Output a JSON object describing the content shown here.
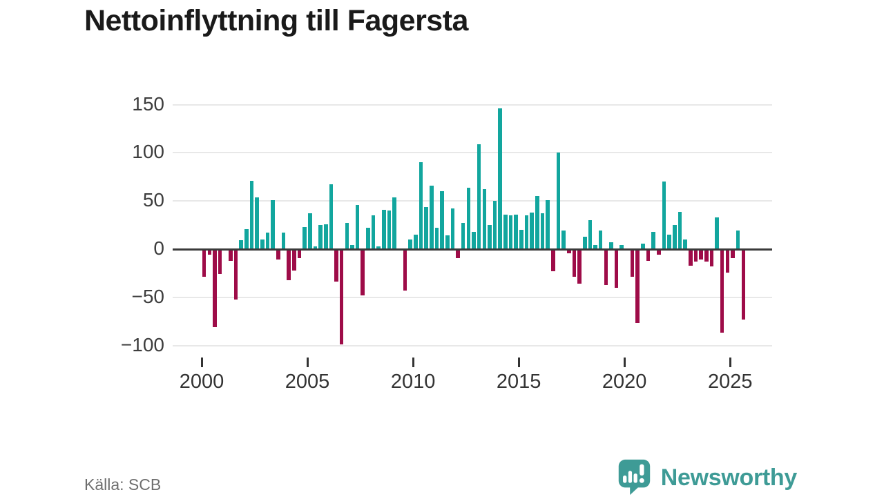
{
  "title": "Nettoinflyttning till Fagersta",
  "source": "Källa: SCB",
  "branding": {
    "name": "Newsworthy",
    "logo_icon": "newsworthy-speech-bubble-chart-icon"
  },
  "colors": {
    "positive": "#12a69e",
    "negative": "#9e0c48",
    "brand": "#3e9b96",
    "grid": "#e8e8e8",
    "zero_line": "#3a3a3a",
    "title_text": "#1a1a1a",
    "axis_text": "#3d3d3d",
    "source_text": "#6e6e6e",
    "background": "#ffffff"
  },
  "chart_data": {
    "type": "bar",
    "title": "Nettoinflyttning till Fagersta",
    "xlabel": "",
    "ylabel": "",
    "unit": "persons per quarter",
    "x_start": {
      "year": 2000,
      "quarter": 1
    },
    "x_end": {
      "year": 2025,
      "quarter": 3
    },
    "x_tick_years": [
      2000,
      2005,
      2010,
      2015,
      2020,
      2025
    ],
    "y_ticks": [
      150,
      100,
      50,
      0,
      -50,
      -100
    ],
    "ylim": [
      -115,
      160
    ],
    "grid": true,
    "legend": false,
    "series": [
      {
        "year": 2000,
        "q": [
          -29,
          -6,
          -81,
          -26
        ]
      },
      {
        "year": 2001,
        "q": [
          0,
          -12,
          -52,
          9
        ]
      },
      {
        "year": 2002,
        "q": [
          21,
          71,
          54,
          10
        ]
      },
      {
        "year": 2003,
        "q": [
          17,
          51,
          -11,
          17
        ]
      },
      {
        "year": 2004,
        "q": [
          -32,
          -22,
          -9,
          23
        ]
      },
      {
        "year": 2005,
        "q": [
          37,
          3,
          25,
          26
        ]
      },
      {
        "year": 2006,
        "q": [
          67,
          -34,
          -99,
          27
        ]
      },
      {
        "year": 2007,
        "q": [
          4,
          46,
          -48,
          22
        ]
      },
      {
        "year": 2008,
        "q": [
          35,
          3,
          41,
          40
        ]
      },
      {
        "year": 2009,
        "q": [
          54,
          0,
          -43,
          10
        ]
      },
      {
        "year": 2010,
        "q": [
          15,
          90,
          44,
          66
        ]
      },
      {
        "year": 2011,
        "q": [
          22,
          60,
          14,
          42
        ]
      },
      {
        "year": 2012,
        "q": [
          -9,
          27,
          64,
          18
        ]
      },
      {
        "year": 2013,
        "q": [
          109,
          62,
          25,
          50
        ]
      },
      {
        "year": 2014,
        "q": [
          146,
          36,
          35,
          36
        ]
      },
      {
        "year": 2015,
        "q": [
          20,
          35,
          38,
          55
        ]
      },
      {
        "year": 2016,
        "q": [
          37,
          51,
          -23,
          100
        ]
      },
      {
        "year": 2017,
        "q": [
          19,
          -4,
          -29,
          -36
        ]
      },
      {
        "year": 2018,
        "q": [
          13,
          30,
          4,
          19
        ]
      },
      {
        "year": 2019,
        "q": [
          -37,
          7,
          -40,
          4
        ]
      },
      {
        "year": 2020,
        "q": [
          0,
          -29,
          -77,
          6
        ]
      },
      {
        "year": 2021,
        "q": [
          -12,
          18,
          -6,
          70
        ]
      },
      {
        "year": 2022,
        "q": [
          15,
          25,
          39,
          10
        ]
      },
      {
        "year": 2023,
        "q": [
          -17,
          -13,
          -11,
          -13
        ]
      },
      {
        "year": 2024,
        "q": [
          -18,
          33,
          -87,
          -24
        ]
      },
      {
        "year": 2025,
        "q": [
          -9,
          19,
          -73
        ]
      }
    ]
  }
}
